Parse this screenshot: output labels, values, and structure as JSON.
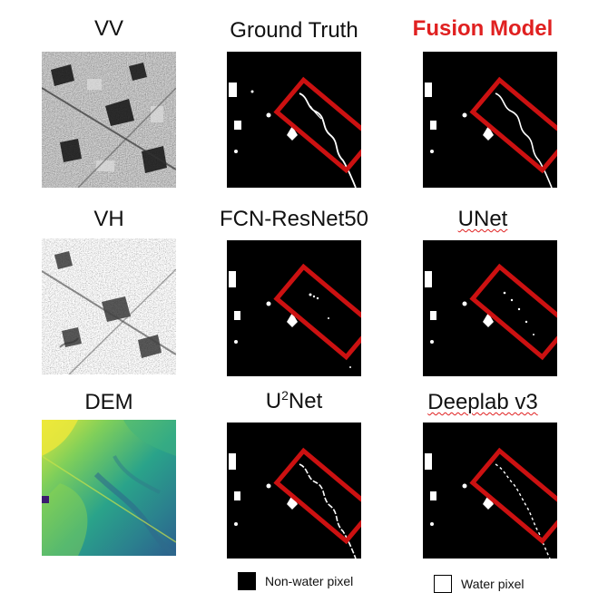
{
  "labels": {
    "vv": "VV",
    "ground_truth": "Ground Truth",
    "fusion_model": "Fusion Model",
    "vh": "VH",
    "fcn": "FCN-ResNet50",
    "unet": "UNet",
    "dem": "DEM",
    "u2net_base": "U",
    "u2net_sup": "2",
    "u2net_rest": "Net",
    "deeplab": "Deeplab v3"
  },
  "legend": {
    "non_water": "Non-water pixel",
    "water": "Water pixel"
  },
  "colors": {
    "highlight_box": "#cc1111",
    "fusion_title": "#e02020",
    "mask_background": "#000000",
    "water": "#ffffff"
  }
}
